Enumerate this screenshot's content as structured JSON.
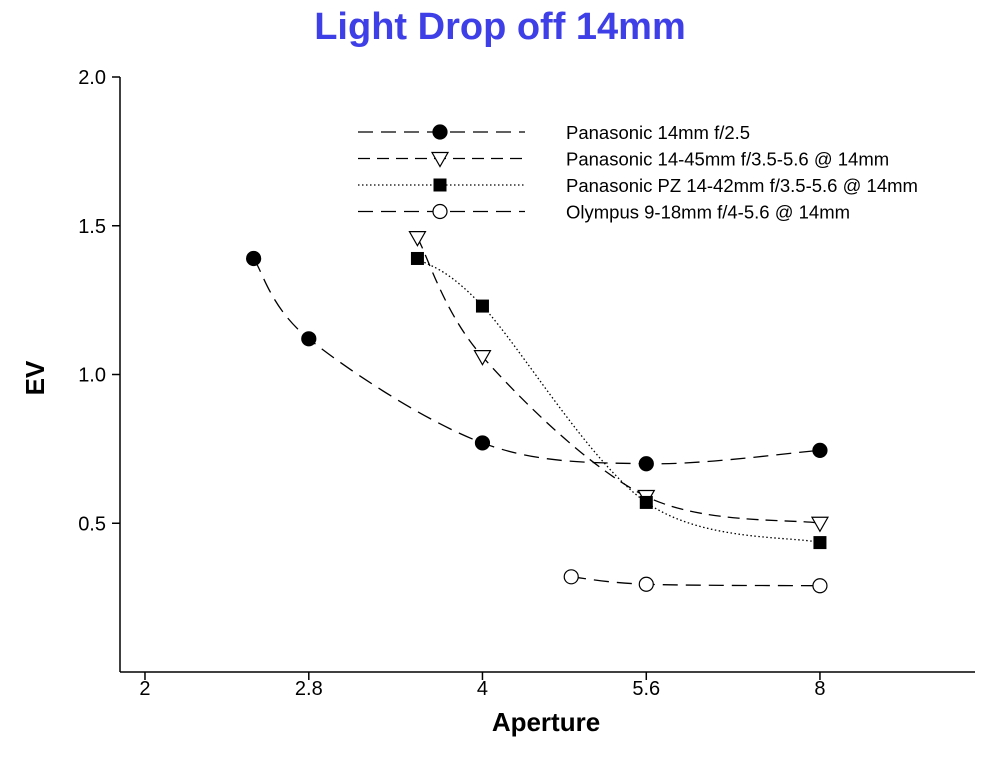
{
  "chart_data": {
    "type": "line",
    "title": "Light Drop off 14mm",
    "xlabel": "Aperture",
    "ylabel": "EV",
    "x_ticks": [
      "2",
      "2.8",
      "4",
      "5.6",
      "8"
    ],
    "y_ticks": [
      "0.5",
      "1.0",
      "1.5",
      "2.0"
    ],
    "xlim": [
      1.9,
      11.0
    ],
    "ylim": [
      0.0,
      2.0
    ],
    "grid": false,
    "legend_position": "top-right",
    "series": [
      {
        "name": "Panasonic 14mm f/2.5",
        "marker": "filled-circle",
        "line": "long-dash",
        "x": [
          2.5,
          2.8,
          4.0,
          5.6,
          8.0
        ],
        "y": [
          1.39,
          1.12,
          0.77,
          0.7,
          0.745
        ]
      },
      {
        "name": "Panasonic 14-45mm f/3.5-5.6 @ 14mm",
        "marker": "open-triangle-down",
        "line": "dash",
        "x": [
          3.5,
          4.0,
          5.6,
          8.0
        ],
        "y": [
          1.46,
          1.06,
          0.59,
          0.5
        ]
      },
      {
        "name": "Panasonic PZ 14-42mm f/3.5-5.6 @ 14mm",
        "marker": "filled-square",
        "line": "dotted",
        "x": [
          3.5,
          4.0,
          5.6,
          8.0
        ],
        "y": [
          1.39,
          1.23,
          0.57,
          0.435
        ]
      },
      {
        "name": "Olympus 9-18mm f/4-5.6 @ 14mm",
        "marker": "open-circle",
        "line": "long-dash",
        "x": [
          4.8,
          5.6,
          8.0
        ],
        "y": [
          0.32,
          0.295,
          0.29
        ]
      }
    ]
  }
}
